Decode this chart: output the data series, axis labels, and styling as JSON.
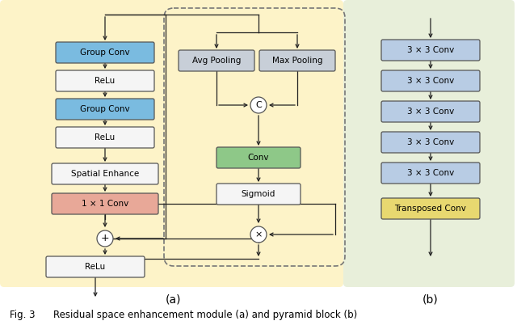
{
  "fig_width": 6.4,
  "fig_height": 3.97,
  "bg_color": "#ffffff",
  "panel_a_bg": "#fdf3c8",
  "panel_b_bg": "#e8efda",
  "caption": "Fig. 3      Residual space enhancement module (a) and pyramid block (b)",
  "caption_fontsize": 8.5,
  "label_a": "(a)",
  "label_b": "(b)"
}
